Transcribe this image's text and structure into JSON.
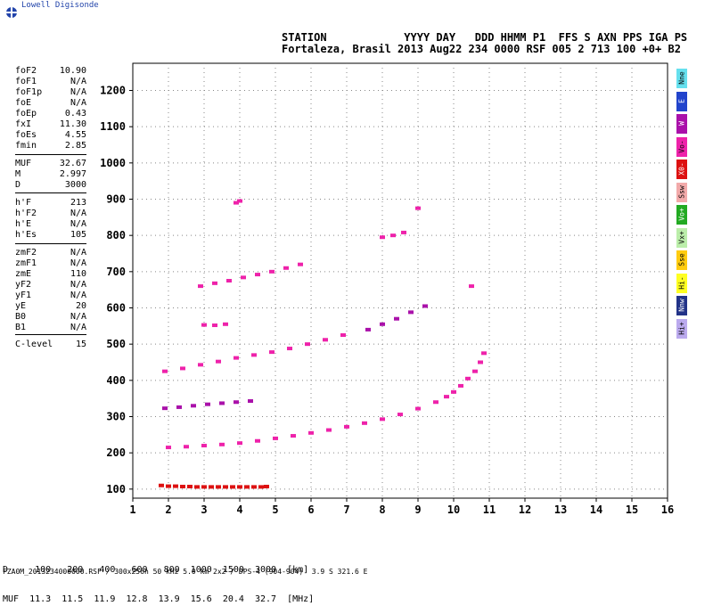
{
  "header": {
    "logo_text": "Lowell Digisonde",
    "labels_line": "STATION            YYYY DAY   DDD HHMM P1  FFS S AXN PPS IGA PS",
    "values_line": "Fortaleza, Brasil 2013 Aug22 234 0000 RSF 005 2 713 100 +0+ B2"
  },
  "params": [
    {
      "label": "foF2",
      "value": "10.90"
    },
    {
      "label": "foF1",
      "value": "N/A"
    },
    {
      "label": "foF1p",
      "value": "N/A"
    },
    {
      "label": "foE",
      "value": "N/A"
    },
    {
      "label": "foEp",
      "value": "0.43"
    },
    {
      "label": "fxI",
      "value": "11.30"
    },
    {
      "label": "foEs",
      "value": "4.55"
    },
    {
      "label": "fmin",
      "value": "2.85"
    },
    {
      "label": "MUF",
      "value": "32.67"
    },
    {
      "label": "M",
      "value": "2.997"
    },
    {
      "label": "D",
      "value": "3000"
    },
    {
      "label": "h'F",
      "value": "213"
    },
    {
      "label": "h'F2",
      "value": "N/A"
    },
    {
      "label": "h'E",
      "value": "N/A"
    },
    {
      "label": "h'Es",
      "value": "105"
    },
    {
      "label": "zmF2",
      "value": "N/A"
    },
    {
      "label": "zmF1",
      "value": "N/A"
    },
    {
      "label": "zmE",
      "value": "110"
    },
    {
      "label": "yF2",
      "value": "N/A"
    },
    {
      "label": "yF1",
      "value": "N/A"
    },
    {
      "label": "yE",
      "value": "20"
    },
    {
      "label": "B0",
      "value": "N/A"
    },
    {
      "label": "B1",
      "value": "N/A"
    },
    {
      "label": "C-level",
      "value": "15"
    }
  ],
  "legend": [
    {
      "label": "Nne",
      "color": "#66e0ee"
    },
    {
      "label": "E",
      "color": "#2244cc"
    },
    {
      "label": "W",
      "color": "#aa11aa"
    },
    {
      "label": "Vo-",
      "color": "#ee22aa"
    },
    {
      "label": "X0-",
      "color": "#dd1111"
    },
    {
      "label": "Ssw",
      "color": "#f2aaaa"
    },
    {
      "label": "Vo+",
      "color": "#22aa22"
    },
    {
      "label": "Vx+",
      "color": "#bbeeaa"
    },
    {
      "label": "Sse",
      "color": "#ffcc11"
    },
    {
      "label": "Hi-",
      "color": "#ffff22"
    },
    {
      "label": "Nnw",
      "color": "#223388"
    },
    {
      "label": "Hi+",
      "color": "#bbaaee"
    }
  ],
  "muf_table": {
    "d_line": "D     100   200   400   600   800  1000  1500  3000  [km]",
    "muf_line": "MUF  11.3  11.5  11.9  12.8  13.9  15.6  20.4  32.7  [MHz]"
  },
  "footer": "FZA0M_2013234000000.RSF / 300x256h 50 kHz 5.0 km 2x2 / DPS-4 (904-904)  3.9 S 321.6 E",
  "chart_data": {
    "type": "scatter",
    "title": "",
    "xlabel": "",
    "ylabel": "",
    "xlim": [
      1,
      16
    ],
    "ylim": [
      75,
      1275
    ],
    "x_ticks": [
      1,
      2,
      3,
      4,
      5,
      6,
      7,
      8,
      9,
      10,
      11,
      12,
      13,
      14,
      15,
      16
    ],
    "y_ticks": [
      100,
      200,
      300,
      400,
      500,
      600,
      700,
      800,
      900,
      1000,
      1100,
      1200
    ],
    "grid": true,
    "series": [
      {
        "name": "Es",
        "color": "#dd1111",
        "x": [
          1.8,
          2.0,
          2.2,
          2.4,
          2.6,
          2.8,
          3.0,
          3.2,
          3.4,
          3.6,
          3.8,
          4.0,
          4.2,
          4.4,
          4.6,
          4.75
        ],
        "y": [
          110,
          108,
          108,
          107,
          107,
          106,
          106,
          106,
          106,
          106,
          106,
          106,
          106,
          106,
          106,
          107
        ]
      },
      {
        "name": "F-trace",
        "color": "#ee22aa",
        "x": [
          2.0,
          2.5,
          3.0,
          3.5,
          4.0,
          4.5,
          5.0,
          5.5,
          6.0,
          6.5,
          7.0,
          7.5,
          8.0,
          8.5,
          9.0,
          9.5,
          9.8,
          10.0,
          10.2,
          10.4,
          10.6,
          10.75,
          10.85
        ],
        "y": [
          215,
          217,
          220,
          223,
          227,
          233,
          240,
          247,
          255,
          263,
          272,
          282,
          293,
          306,
          322,
          340,
          355,
          368,
          385,
          405,
          425,
          450,
          475
        ]
      },
      {
        "name": "2F",
        "color": "#aa11aa",
        "x": [
          1.9,
          2.3,
          2.7,
          3.1,
          3.5,
          3.9,
          4.3
        ],
        "y": [
          323,
          326,
          330,
          334,
          337,
          340,
          343
        ]
      },
      {
        "name": "3F",
        "color": "#ee22aa",
        "x": [
          1.9,
          2.4,
          2.9,
          3.4,
          3.9,
          4.4,
          4.9,
          5.4,
          5.9,
          6.4,
          6.9
        ],
        "y": [
          425,
          433,
          443,
          452,
          462,
          470,
          478,
          488,
          500,
          512,
          525
        ]
      },
      {
        "name": "multi-hop",
        "color": "#aa11aa",
        "x": [
          7.6,
          8.0,
          8.4,
          8.8,
          9.2
        ],
        "y": [
          540,
          555,
          570,
          588,
          605
        ]
      },
      {
        "name": "faint",
        "color": "#ee22aa",
        "x": [
          2.9,
          3.3,
          3.7,
          4.1,
          4.5,
          4.9,
          5.3,
          5.7,
          3.0,
          3.3,
          3.6,
          3.9,
          4.0,
          8.0,
          8.3,
          8.6,
          9.0,
          10.5
        ],
        "y": [
          660,
          668,
          675,
          684,
          692,
          700,
          710,
          720,
          553,
          552,
          555,
          890,
          895,
          795,
          800,
          808,
          875,
          660
        ]
      }
    ]
  }
}
